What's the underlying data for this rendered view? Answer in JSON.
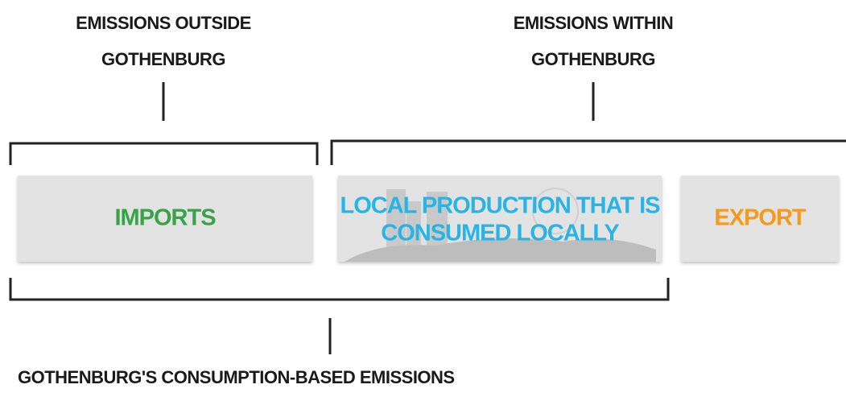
{
  "top_labels": [
    {
      "lines": [
        "EMISSIONS OUTSIDE",
        "GOTHENBURG"
      ]
    },
    {
      "lines": [
        "EMISSIONS WITHIN",
        "GOTHENBURG"
      ]
    }
  ],
  "boxes": [
    {
      "lines": [
        "IMPORTS"
      ]
    },
    {
      "lines": [
        "LOCAL PRODUCTION THAT IS",
        "CONSUMED LOCALLY"
      ]
    },
    {
      "lines": [
        "EXPORT"
      ]
    }
  ],
  "bottom_label": "GOTHENBURG'S CONSUMPTION-BASED EMISSIONS"
}
